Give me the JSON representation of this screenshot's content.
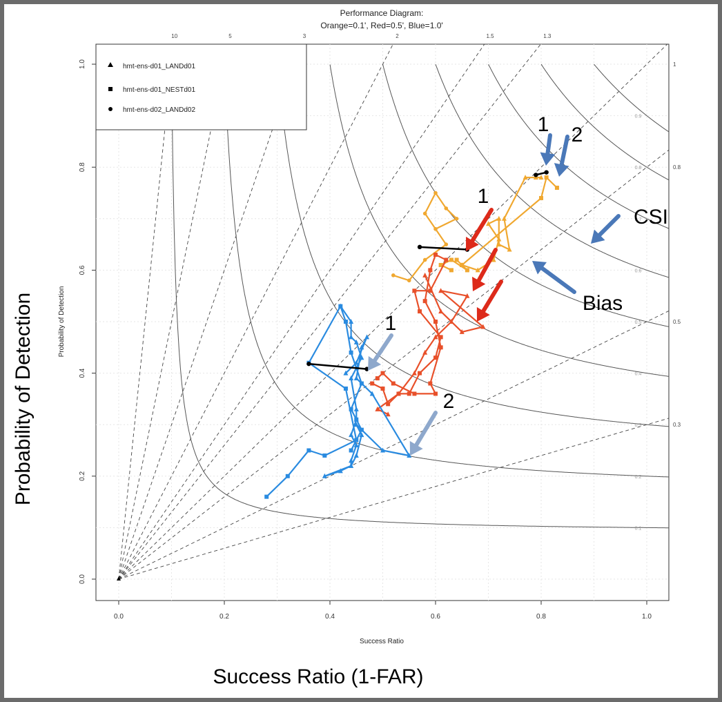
{
  "chart_data": {
    "type": "line",
    "title_line1": "Performance Diagram:",
    "title_line2": "Orange=0.1', Red=0.5', Blue=1.0'",
    "xlabel": "Success Ratio",
    "ylabel": "Probability of Detection",
    "outer_xlabel": "Success Ratio (1-FAR)",
    "outer_ylabel": "Probability of Detection",
    "xlim": [
      0,
      1
    ],
    "ylim": [
      0,
      1
    ],
    "x_ticks": [
      "0.0",
      "0.2",
      "0.4",
      "0.6",
      "0.8",
      "1.0"
    ],
    "y_ticks": [
      "0.0",
      "0.2",
      "0.4",
      "0.6",
      "0.8",
      "1.0"
    ],
    "grid": true,
    "legend": {
      "position": "top-left",
      "entries": [
        {
          "marker": "triangle",
          "label": "hmt-ens-d01_LANDd01"
        },
        {
          "marker": "square",
          "label": "hmt-ens-d01_NESTd01"
        },
        {
          "marker": "circle",
          "label": "hmt-ens-d02_LANDd02"
        }
      ]
    },
    "bias_lines": [
      {
        "bias": 10,
        "label": "10",
        "side": "top"
      },
      {
        "bias": 5,
        "label": "5",
        "side": "top"
      },
      {
        "bias": 3,
        "label": "3",
        "side": "top"
      },
      {
        "bias": 2,
        "label": "2",
        "side": "top"
      },
      {
        "bias": 1.5,
        "label": "1.5",
        "side": "top"
      },
      {
        "bias": 1.3,
        "label": "1.3",
        "side": "top"
      },
      {
        "bias": 1,
        "label": "1",
        "side": "right"
      },
      {
        "bias": 0.8,
        "label": "0.8",
        "side": "right"
      },
      {
        "bias": 0.5,
        "label": "0.5",
        "side": "right"
      },
      {
        "bias": 0.3,
        "label": "0.3",
        "side": "right"
      }
    ],
    "csi_lines": [
      {
        "csi": 0.1,
        "label": "0.1"
      },
      {
        "csi": 0.2,
        "label": "0.2"
      },
      {
        "csi": 0.3,
        "label": "0.3"
      },
      {
        "csi": 0.4,
        "label": "0.4"
      },
      {
        "csi": 0.5,
        "label": "0.5"
      },
      {
        "csi": 0.6,
        "label": "0.6"
      },
      {
        "csi": 0.7,
        "label": "0.7"
      },
      {
        "csi": 0.8,
        "label": "0.8"
      },
      {
        "csi": 0.9,
        "label": "0.9"
      }
    ],
    "series": [
      {
        "color": "#f0a830",
        "marker": "circle",
        "points": [
          [
            0.52,
            0.59
          ],
          [
            0.55,
            0.58
          ],
          [
            0.58,
            0.62
          ],
          [
            0.62,
            0.65
          ],
          [
            0.58,
            0.71
          ],
          [
            0.6,
            0.75
          ],
          [
            0.62,
            0.72
          ],
          [
            0.64,
            0.7
          ],
          [
            0.6,
            0.68
          ]
        ]
      },
      {
        "color": "#f0a830",
        "marker": "triangle",
        "points": [
          [
            0.65,
            0.61
          ],
          [
            0.68,
            0.6
          ],
          [
            0.71,
            0.62
          ],
          [
            0.72,
            0.66
          ],
          [
            0.7,
            0.69
          ],
          [
            0.72,
            0.7
          ],
          [
            0.72,
            0.65
          ],
          [
            0.74,
            0.64
          ],
          [
            0.73,
            0.7
          ],
          [
            0.77,
            0.78
          ],
          [
            0.79,
            0.78
          ],
          [
            0.8,
            0.78
          ]
        ]
      },
      {
        "color": "#f0a830",
        "marker": "square",
        "points": [
          [
            0.63,
            0.6
          ],
          [
            0.61,
            0.61
          ],
          [
            0.63,
            0.62
          ],
          [
            0.66,
            0.6
          ],
          [
            0.64,
            0.62
          ],
          [
            0.65,
            0.61
          ],
          [
            0.8,
            0.74
          ],
          [
            0.81,
            0.78
          ],
          [
            0.83,
            0.76
          ]
        ]
      },
      {
        "color": "#e8502a",
        "marker": "square",
        "points": [
          [
            0.48,
            0.38
          ],
          [
            0.5,
            0.37
          ],
          [
            0.51,
            0.34
          ],
          [
            0.53,
            0.36
          ],
          [
            0.55,
            0.36
          ],
          [
            0.57,
            0.4
          ],
          [
            0.6,
            0.43
          ],
          [
            0.61,
            0.47
          ],
          [
            0.57,
            0.52
          ],
          [
            0.56,
            0.56
          ],
          [
            0.59,
            0.56
          ],
          [
            0.62,
            0.62
          ],
          [
            0.6,
            0.63
          ],
          [
            0.59,
            0.6
          ],
          [
            0.58,
            0.54
          ],
          [
            0.6,
            0.5
          ],
          [
            0.61,
            0.45
          ],
          [
            0.59,
            0.38
          ],
          [
            0.6,
            0.36
          ],
          [
            0.56,
            0.36
          ],
          [
            0.52,
            0.38
          ],
          [
            0.5,
            0.4
          ],
          [
            0.49,
            0.39
          ]
        ]
      },
      {
        "color": "#e8502a",
        "marker": "triangle",
        "points": [
          [
            0.58,
            0.59
          ],
          [
            0.61,
            0.52
          ],
          [
            0.65,
            0.48
          ],
          [
            0.69,
            0.49
          ],
          [
            0.61,
            0.56
          ],
          [
            0.66,
            0.55
          ],
          [
            0.63,
            0.5
          ],
          [
            0.6,
            0.47
          ],
          [
            0.58,
            0.44
          ],
          [
            0.56,
            0.4
          ],
          [
            0.53,
            0.36
          ],
          [
            0.49,
            0.33
          ],
          [
            0.51,
            0.32
          ]
        ]
      },
      {
        "color": "#2a8be0",
        "marker": "triangle",
        "points": [
          [
            0.42,
            0.53
          ],
          [
            0.44,
            0.5
          ],
          [
            0.44,
            0.47
          ],
          [
            0.45,
            0.46
          ],
          [
            0.46,
            0.43
          ],
          [
            0.44,
            0.39
          ],
          [
            0.45,
            0.33
          ],
          [
            0.45,
            0.31
          ],
          [
            0.44,
            0.28
          ],
          [
            0.45,
            0.26
          ],
          [
            0.44,
            0.23
          ],
          [
            0.44,
            0.22
          ],
          [
            0.42,
            0.21
          ],
          [
            0.39,
            0.2
          ],
          [
            0.44,
            0.22
          ],
          [
            0.45,
            0.24
          ],
          [
            0.46,
            0.28
          ],
          [
            0.45,
            0.3
          ],
          [
            0.5,
            0.25
          ],
          [
            0.55,
            0.24
          ],
          [
            0.48,
            0.36
          ],
          [
            0.45,
            0.39
          ],
          [
            0.46,
            0.45
          ],
          [
            0.47,
            0.47
          ],
          [
            0.45,
            0.42
          ],
          [
            0.43,
            0.4
          ]
        ]
      },
      {
        "color": "#2a8be0",
        "marker": "square",
        "points": [
          [
            0.28,
            0.16
          ],
          [
            0.32,
            0.2
          ],
          [
            0.36,
            0.25
          ],
          [
            0.39,
            0.24
          ],
          [
            0.45,
            0.27
          ],
          [
            0.43,
            0.37
          ],
          [
            0.36,
            0.42
          ],
          [
            0.42,
            0.53
          ],
          [
            0.43,
            0.5
          ],
          [
            0.44,
            0.44
          ],
          [
            0.46,
            0.38
          ],
          [
            0.44,
            0.33
          ],
          [
            0.45,
            0.31
          ],
          [
            0.46,
            0.29
          ],
          [
            0.44,
            0.25
          ]
        ]
      }
    ],
    "black_segments": [
      {
        "points": [
          [
            0.57,
            0.645
          ],
          [
            0.66,
            0.64
          ]
        ]
      },
      {
        "points": [
          [
            0.36,
            0.418
          ],
          [
            0.47,
            0.408
          ]
        ]
      },
      {
        "points": [
          [
            0.79,
            0.785
          ],
          [
            0.81,
            0.79
          ]
        ]
      }
    ],
    "annotations": [
      {
        "text": "1",
        "color": "#000000"
      },
      {
        "text": "2",
        "color": "#000000"
      },
      {
        "text": "1",
        "color": "#000000"
      },
      {
        "text": "CSI",
        "color": "#000000"
      },
      {
        "text": "Bias",
        "color": "#000000"
      },
      {
        "text": "1",
        "color": "#000000"
      },
      {
        "text": "2",
        "color": "#000000"
      }
    ],
    "arrow_colors": {
      "blue": "#4a78b8",
      "red": "#dd2a1a",
      "lightblue": "#8ea8cc"
    }
  }
}
